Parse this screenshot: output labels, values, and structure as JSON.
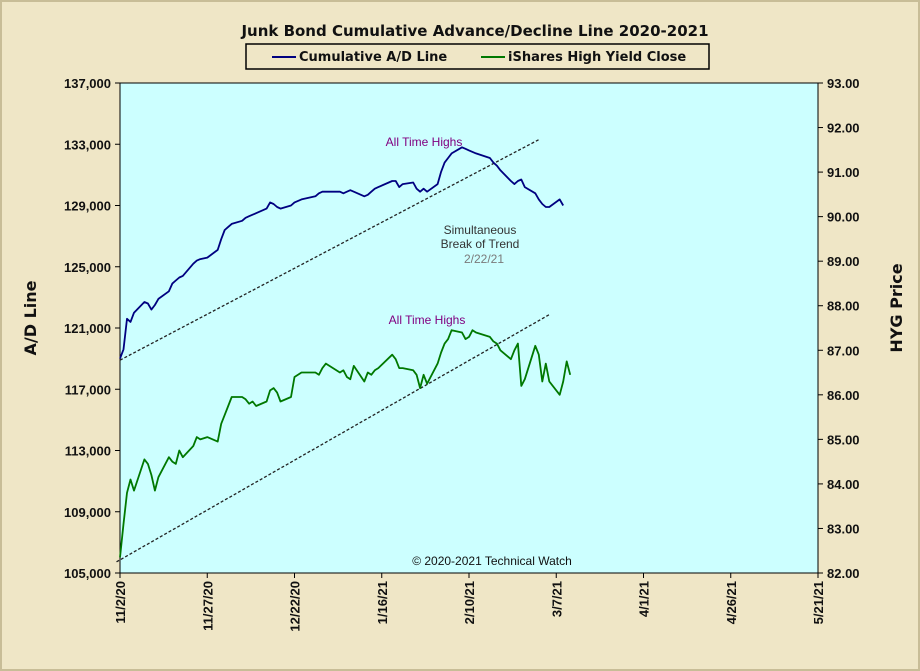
{
  "chart_data": {
    "type": "line",
    "title": "Junk Bond Cumulative  Advance/Decline  Line  2020-2021",
    "y_left_label": "A/D Line",
    "y_right_label": "HYG Price",
    "y_left_range": [
      105000,
      137000
    ],
    "y_right_range": [
      82.0,
      93.0
    ],
    "x_range": [
      "2020-11-02",
      "2021-05-21"
    ],
    "y_left_ticks": [
      "137,000",
      "133,000",
      "129,000",
      "125,000",
      "121,000",
      "117,000",
      "113,000",
      "109,000",
      "105,000"
    ],
    "y_right_ticks": [
      "93.00",
      "92.00",
      "91.00",
      "90.00",
      "89.00",
      "88.00",
      "87.00",
      "86.00",
      "85.00",
      "84.00",
      "83.00",
      "82.00"
    ],
    "x_ticks": [
      {
        "label": "11/2/20",
        "date": "2020-11-02"
      },
      {
        "label": "11/27/20",
        "date": "2020-11-27"
      },
      {
        "label": "12/22/20",
        "date": "2020-12-22"
      },
      {
        "label": "1/16/21",
        "date": "2021-01-16"
      },
      {
        "label": "2/10/21",
        "date": "2021-02-10"
      },
      {
        "label": "3/7/21",
        "date": "2021-03-07"
      },
      {
        "label": "4/1/21",
        "date": "2021-04-01"
      },
      {
        "label": "4/26/21",
        "date": "2021-04-26"
      },
      {
        "label": "5/21/21",
        "date": "2021-05-21"
      }
    ],
    "grid": false,
    "legend_position": "top",
    "series": [
      {
        "name": "Cumulative A/D Line",
        "axis": "left",
        "color": "#000080",
        "points": [
          [
            "2020-11-02",
            119000
          ],
          [
            "2020-11-03",
            119600
          ],
          [
            "2020-11-04",
            121600
          ],
          [
            "2020-11-05",
            121400
          ],
          [
            "2020-11-06",
            122000
          ],
          [
            "2020-11-09",
            122700
          ],
          [
            "2020-11-10",
            122600
          ],
          [
            "2020-11-11",
            122200
          ],
          [
            "2020-11-12",
            122500
          ],
          [
            "2020-11-13",
            122900
          ],
          [
            "2020-11-16",
            123400
          ],
          [
            "2020-11-17",
            123900
          ],
          [
            "2020-11-18",
            124100
          ],
          [
            "2020-11-19",
            124300
          ],
          [
            "2020-11-20",
            124400
          ],
          [
            "2020-11-23",
            125200
          ],
          [
            "2020-11-24",
            125400
          ],
          [
            "2020-11-25",
            125500
          ],
          [
            "2020-11-27",
            125600
          ],
          [
            "2020-11-30",
            126100
          ],
          [
            "2020-12-01",
            126800
          ],
          [
            "2020-12-02",
            127400
          ],
          [
            "2020-12-03",
            127600
          ],
          [
            "2020-12-04",
            127800
          ],
          [
            "2020-12-07",
            128000
          ],
          [
            "2020-12-08",
            128200
          ],
          [
            "2020-12-09",
            128300
          ],
          [
            "2020-12-10",
            128400
          ],
          [
            "2020-12-11",
            128500
          ],
          [
            "2020-12-14",
            128800
          ],
          [
            "2020-12-15",
            129200
          ],
          [
            "2020-12-16",
            129100
          ],
          [
            "2020-12-17",
            128900
          ],
          [
            "2020-12-18",
            128800
          ],
          [
            "2020-12-21",
            129000
          ],
          [
            "2020-12-22",
            129200
          ],
          [
            "2020-12-23",
            129300
          ],
          [
            "2020-12-24",
            129400
          ],
          [
            "2020-12-28",
            129600
          ],
          [
            "2020-12-29",
            129800
          ],
          [
            "2020-12-30",
            129900
          ],
          [
            "2020-12-31",
            129900
          ],
          [
            "2021-01-04",
            129900
          ],
          [
            "2021-01-05",
            129800
          ],
          [
            "2021-01-06",
            129900
          ],
          [
            "2021-01-07",
            130000
          ],
          [
            "2021-01-08",
            129900
          ],
          [
            "2021-01-11",
            129600
          ],
          [
            "2021-01-12",
            129700
          ],
          [
            "2021-01-13",
            129900
          ],
          [
            "2021-01-14",
            130100
          ],
          [
            "2021-01-15",
            130200
          ],
          [
            "2021-01-19",
            130600
          ],
          [
            "2021-01-20",
            130600
          ],
          [
            "2021-01-21",
            130200
          ],
          [
            "2021-01-22",
            130400
          ],
          [
            "2021-01-25",
            130500
          ],
          [
            "2021-01-26",
            130100
          ],
          [
            "2021-01-27",
            129900
          ],
          [
            "2021-01-28",
            130100
          ],
          [
            "2021-01-29",
            129900
          ],
          [
            "2021-02-01",
            130400
          ],
          [
            "2021-02-02",
            131200
          ],
          [
            "2021-02-03",
            131800
          ],
          [
            "2021-02-04",
            132100
          ],
          [
            "2021-02-05",
            132400
          ],
          [
            "2021-02-08",
            132800
          ],
          [
            "2021-02-09",
            132700
          ],
          [
            "2021-02-10",
            132600
          ],
          [
            "2021-02-11",
            132500
          ],
          [
            "2021-02-12",
            132400
          ],
          [
            "2021-02-16",
            132100
          ],
          [
            "2021-02-17",
            131800
          ],
          [
            "2021-02-18",
            131600
          ],
          [
            "2021-02-19",
            131300
          ],
          [
            "2021-02-22",
            130600
          ],
          [
            "2021-02-23",
            130400
          ],
          [
            "2021-02-24",
            130600
          ],
          [
            "2021-02-25",
            130700
          ],
          [
            "2021-02-26",
            130200
          ],
          [
            "2021-03-01",
            129800
          ],
          [
            "2021-03-02",
            129400
          ],
          [
            "2021-03-03",
            129100
          ],
          [
            "2021-03-04",
            128900
          ],
          [
            "2021-03-05",
            128900
          ],
          [
            "2021-03-08",
            129400
          ],
          [
            "2021-03-09",
            129000
          ]
        ]
      },
      {
        "name": "iShares High Yield Close",
        "axis": "right",
        "color": "#007800",
        "points": [
          [
            "2020-11-02",
            82.35
          ],
          [
            "2020-11-03",
            83.1
          ],
          [
            "2020-11-04",
            83.8
          ],
          [
            "2020-11-05",
            84.1
          ],
          [
            "2020-11-06",
            83.85
          ],
          [
            "2020-11-09",
            84.55
          ],
          [
            "2020-11-10",
            84.45
          ],
          [
            "2020-11-11",
            84.2
          ],
          [
            "2020-11-12",
            83.85
          ],
          [
            "2020-11-13",
            84.15
          ],
          [
            "2020-11-16",
            84.6
          ],
          [
            "2020-11-17",
            84.5
          ],
          [
            "2020-11-18",
            84.45
          ],
          [
            "2020-11-19",
            84.75
          ],
          [
            "2020-11-20",
            84.6
          ],
          [
            "2020-11-23",
            84.85
          ],
          [
            "2020-11-24",
            85.05
          ],
          [
            "2020-11-25",
            85.0
          ],
          [
            "2020-11-27",
            85.05
          ],
          [
            "2020-11-30",
            84.95
          ],
          [
            "2020-12-01",
            85.35
          ],
          [
            "2020-12-02",
            85.55
          ],
          [
            "2020-12-03",
            85.75
          ],
          [
            "2020-12-04",
            85.95
          ],
          [
            "2020-12-07",
            85.95
          ],
          [
            "2020-12-08",
            85.9
          ],
          [
            "2020-12-09",
            85.8
          ],
          [
            "2020-12-10",
            85.85
          ],
          [
            "2020-12-11",
            85.75
          ],
          [
            "2020-12-14",
            85.85
          ],
          [
            "2020-12-15",
            86.1
          ],
          [
            "2020-12-16",
            86.15
          ],
          [
            "2020-12-17",
            86.05
          ],
          [
            "2020-12-18",
            85.85
          ],
          [
            "2020-12-21",
            85.95
          ],
          [
            "2020-12-22",
            86.4
          ],
          [
            "2020-12-23",
            86.45
          ],
          [
            "2020-12-24",
            86.5
          ],
          [
            "2020-12-28",
            86.5
          ],
          [
            "2020-12-29",
            86.45
          ],
          [
            "2020-12-30",
            86.6
          ],
          [
            "2020-12-31",
            86.7
          ],
          [
            "2021-01-04",
            86.5
          ],
          [
            "2021-01-05",
            86.55
          ],
          [
            "2021-01-06",
            86.4
          ],
          [
            "2021-01-07",
            86.35
          ],
          [
            "2021-01-08",
            86.65
          ],
          [
            "2021-01-11",
            86.3
          ],
          [
            "2021-01-12",
            86.5
          ],
          [
            "2021-01-13",
            86.45
          ],
          [
            "2021-01-14",
            86.55
          ],
          [
            "2021-01-15",
            86.6
          ],
          [
            "2021-01-19",
            86.9
          ],
          [
            "2021-01-20",
            86.8
          ],
          [
            "2021-01-21",
            86.6
          ],
          [
            "2021-01-22",
            86.6
          ],
          [
            "2021-01-25",
            86.55
          ],
          [
            "2021-01-26",
            86.45
          ],
          [
            "2021-01-27",
            86.15
          ],
          [
            "2021-01-28",
            86.45
          ],
          [
            "2021-01-29",
            86.25
          ],
          [
            "2021-02-01",
            86.7
          ],
          [
            "2021-02-02",
            86.95
          ],
          [
            "2021-02-03",
            87.15
          ],
          [
            "2021-02-04",
            87.25
          ],
          [
            "2021-02-05",
            87.45
          ],
          [
            "2021-02-08",
            87.4
          ],
          [
            "2021-02-09",
            87.25
          ],
          [
            "2021-02-10",
            87.3
          ],
          [
            "2021-02-11",
            87.45
          ],
          [
            "2021-02-12",
            87.4
          ],
          [
            "2021-02-16",
            87.3
          ],
          [
            "2021-02-17",
            87.2
          ],
          [
            "2021-02-18",
            87.15
          ],
          [
            "2021-02-19",
            87.0
          ],
          [
            "2021-02-22",
            86.8
          ],
          [
            "2021-02-23",
            87.0
          ],
          [
            "2021-02-24",
            87.15
          ],
          [
            "2021-02-25",
            86.2
          ],
          [
            "2021-02-26",
            86.35
          ],
          [
            "2021-03-01",
            87.1
          ],
          [
            "2021-03-02",
            86.9
          ],
          [
            "2021-03-03",
            86.3
          ],
          [
            "2021-03-04",
            86.7
          ],
          [
            "2021-03-05",
            86.3
          ],
          [
            "2021-03-08",
            86.0
          ],
          [
            "2021-03-09",
            86.3
          ],
          [
            "2021-03-10",
            86.75
          ],
          [
            "2021-03-11",
            86.45
          ]
        ]
      }
    ],
    "trendlines": [
      {
        "axis": "left",
        "from": [
          "2020-11-02",
          118900
        ],
        "to": [
          "2021-03-02",
          133300
        ]
      },
      {
        "axis": "right",
        "from": [
          "2020-11-01",
          82.25
        ],
        "to": [
          "2021-03-05",
          87.8
        ]
      }
    ],
    "annotations": [
      {
        "text": "All Time Highs",
        "color": "#800080"
      },
      {
        "text": "All Time Highs",
        "color": "#800080"
      },
      {
        "text": "Simultaneous",
        "color": "#333333"
      },
      {
        "text": "Break of Trend",
        "color": "#333333"
      },
      {
        "text": "2/22/21",
        "color": "#7a7a7a"
      }
    ],
    "copyright": "© 2020-2021  Technical Watch",
    "colors": {
      "plot_bg": "#ccffff",
      "frame_bg": "#efe6c6"
    }
  }
}
